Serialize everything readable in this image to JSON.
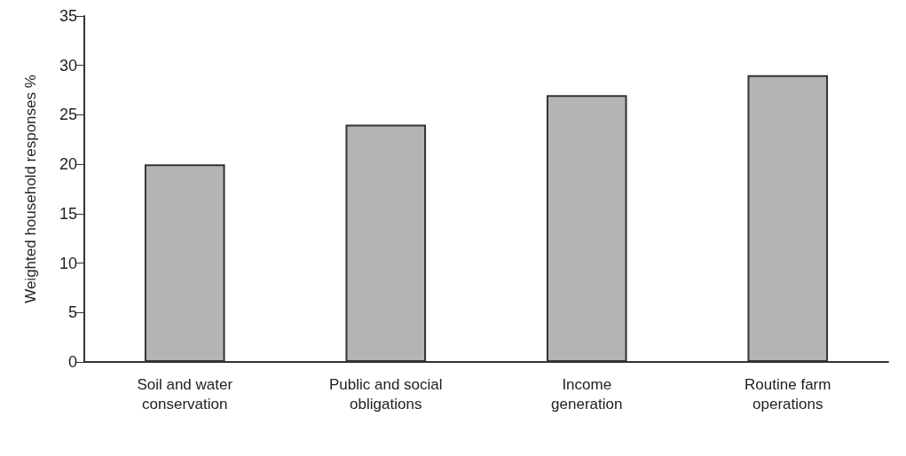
{
  "chart_data": {
    "type": "bar",
    "ylabel": "Weighted household responses %",
    "categories": [
      "Soil and water\nconservation",
      "Public and social\nobligations",
      "Income\ngeneration",
      "Routine farm\noperations"
    ],
    "values": [
      20,
      24,
      27,
      29
    ],
    "color": "#b4b4b4",
    "ylim": [
      0,
      35
    ],
    "yticks": [
      0,
      5,
      10,
      15,
      20,
      25,
      30,
      35
    ],
    "grid": false
  }
}
